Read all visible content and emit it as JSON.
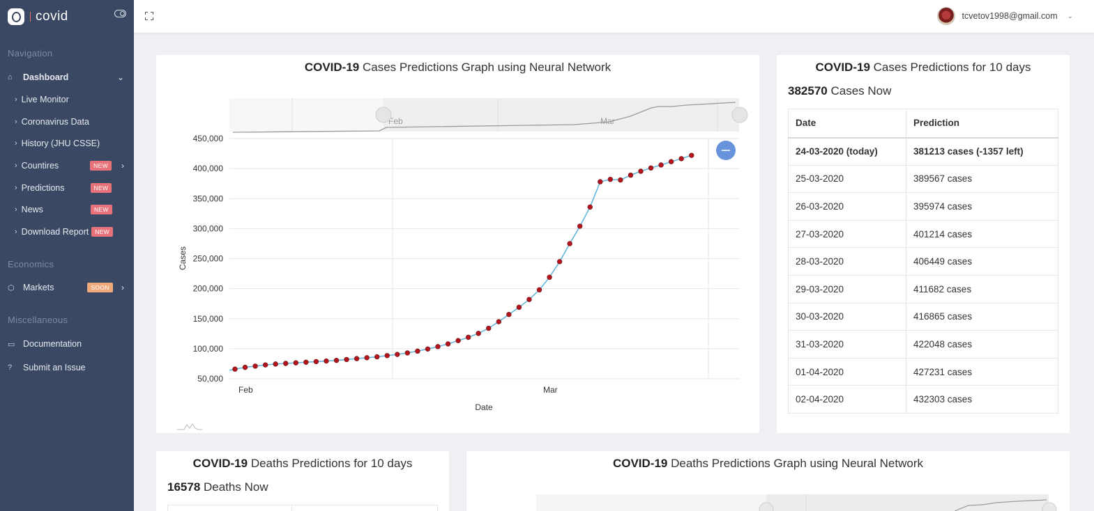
{
  "sidebar": {
    "brand": "covid",
    "sections": {
      "navigation": "Navigation",
      "economics": "Economics",
      "misc": "Miscellaneous"
    },
    "items": {
      "dashboard": "Dashboard",
      "live_monitor": "Live Monitor",
      "coronavirus_data": "Coronavirus Data",
      "history": "History (JHU CSSE)",
      "countries": "Countires",
      "predictions": "Predictions",
      "news": "News",
      "download_report": "Download Report",
      "markets": "Markets",
      "documentation": "Documentation",
      "submit_issue": "Submit an Issue"
    },
    "badges": {
      "new": "NEW",
      "soon": "SOON"
    }
  },
  "topbar": {
    "user_email": "tcvetov1998@gmail.com"
  },
  "cases_graph": {
    "title_bold": "COVID-19",
    "title_rest": " Cases Predictions Graph using Neural Network"
  },
  "cases_table": {
    "title_bold": "COVID-19",
    "title_rest": " Cases Predictions for 10 days",
    "now_value": "382570",
    "now_label": " Cases Now",
    "headers": [
      "Date",
      "Prediction"
    ],
    "rows": [
      [
        "24-03-2020 (today)",
        "381213 cases (-1357 left)"
      ],
      [
        "25-03-2020",
        "389567 cases"
      ],
      [
        "26-03-2020",
        "395974 cases"
      ],
      [
        "27-03-2020",
        "401214 cases"
      ],
      [
        "28-03-2020",
        "406449 cases"
      ],
      [
        "29-03-2020",
        "411682 cases"
      ],
      [
        "30-03-2020",
        "416865 cases"
      ],
      [
        "31-03-2020",
        "422048 cases"
      ],
      [
        "01-04-2020",
        "427231 cases"
      ],
      [
        "02-04-2020",
        "432303 cases"
      ]
    ]
  },
  "deaths_table": {
    "title_bold": "COVID-19",
    "title_rest": " Deaths Predictions for 10 days",
    "now_value": "16578",
    "now_label": " Deaths Now"
  },
  "deaths_graph": {
    "title_bold": "COVID-19",
    "title_rest": " Deaths Predictions Graph using Neural Network"
  },
  "colors": {
    "sidebar_bg": "#3b4863",
    "line": "#67b7dc",
    "marker_fill": "#b5141c",
    "cursor_button": "#6794dc",
    "badge_new": "#e8727a",
    "badge_soon": "#f0a97a"
  },
  "chart_data": {
    "type": "line",
    "xlabel": "Date",
    "ylabel": "Cases",
    "x_ticks": [
      "Feb",
      "Mar"
    ],
    "y_ticks": [
      "50,000",
      "100,000",
      "150,000",
      "200,000",
      "250,000",
      "300,000",
      "350,000",
      "400,000",
      "450,000"
    ],
    "ylim": [
      50000,
      450000
    ],
    "grid": true,
    "scrollbar_labels": [
      "Feb",
      "Mar"
    ],
    "series": [
      {
        "values": [
          66000,
          69000,
          71000,
          73000,
          74500,
          75500,
          76500,
          77500,
          78500,
          79500,
          80500,
          82000,
          83500,
          85000,
          86500,
          88500,
          90500,
          93000,
          96000,
          99500,
          103500,
          108000,
          113500,
          119000,
          125500,
          134000,
          145000,
          157000,
          169000,
          182000,
          198000,
          219000,
          245000,
          275000,
          304000,
          336000,
          378000,
          382000,
          381000,
          389000,
          395500,
          401000,
          406000,
          411500,
          416500,
          422000
        ]
      }
    ]
  }
}
